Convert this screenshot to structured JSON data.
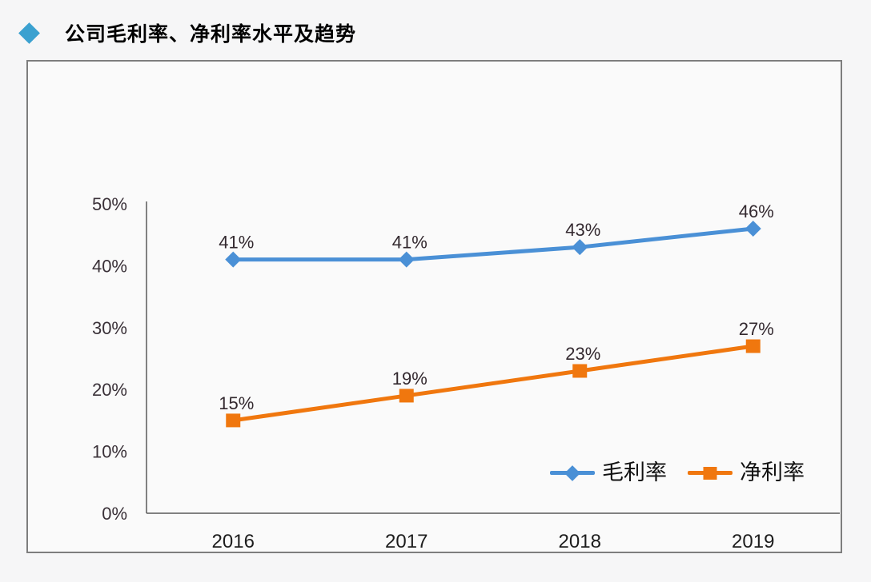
{
  "page": {
    "title": "公司毛利率、净利率水平及趋势",
    "title_bullet_color": "#3ba1d0",
    "background_color": "#f6f6f7"
  },
  "chart_data": {
    "type": "line",
    "categories": [
      "2016",
      "2017",
      "2018",
      "2019"
    ],
    "series": [
      {
        "name": "毛利率",
        "values": [
          41,
          41,
          43,
          46
        ],
        "data_labels": [
          "41%",
          "41%",
          "43%",
          "46%"
        ],
        "color": "#4a90d6",
        "marker": "diamond"
      },
      {
        "name": "净利率",
        "values": [
          15,
          19,
          23,
          27
        ],
        "data_labels": [
          "15%",
          "19%",
          "23%",
          "27%"
        ],
        "color": "#f0770e",
        "marker": "square"
      }
    ],
    "ylim": [
      0,
      50
    ],
    "yticks": [
      0,
      10,
      20,
      30,
      40,
      50
    ],
    "ytick_labels": [
      "0%",
      "10%",
      "20%",
      "30%",
      "40%",
      "50%"
    ],
    "xlabel": "",
    "ylabel": "",
    "grid": false,
    "legend_position": "inside-bottom-right",
    "axis_color": "#595959"
  }
}
